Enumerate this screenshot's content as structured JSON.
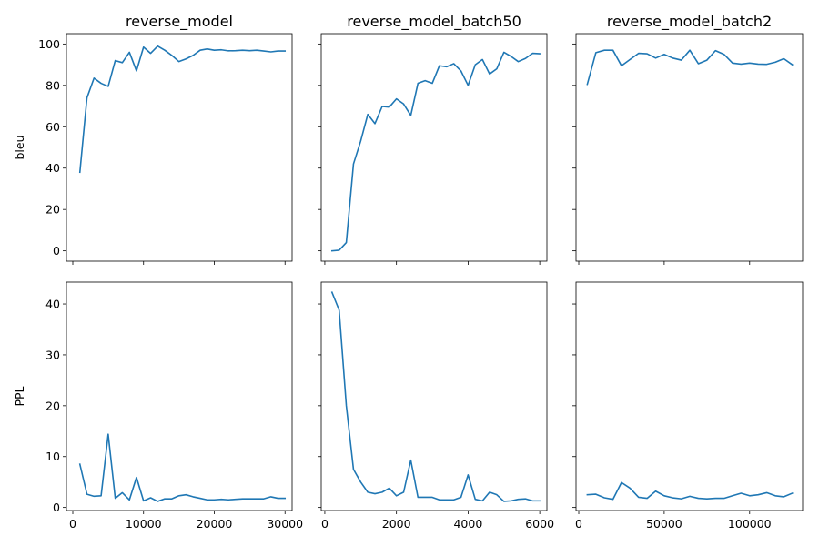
{
  "chart_data": [
    {
      "type": "line",
      "panel": "top-left",
      "title": "reverse_model",
      "ylabel": "bleu",
      "xlabel": "",
      "xlim": [
        -900,
        31000
      ],
      "ylim": [
        -5,
        105
      ],
      "xticks": [
        0,
        10000,
        20000,
        30000
      ],
      "xtick_labels_visible": false,
      "yticks": [
        0,
        20,
        40,
        60,
        80,
        100
      ],
      "ytick_labels_visible": true,
      "x": [
        1000,
        2000,
        3000,
        4000,
        5000,
        6000,
        7000,
        8000,
        9000,
        10000,
        11000,
        12000,
        13000,
        14000,
        15000,
        16000,
        17000,
        18000,
        19000,
        20000,
        21000,
        22000,
        23000,
        24000,
        25000,
        26000,
        27000,
        28000,
        29000,
        30000
      ],
      "y": [
        38,
        74,
        83.5,
        81,
        79.5,
        92,
        91,
        96,
        87,
        98.5,
        95.5,
        99,
        97,
        94.5,
        91.5,
        92.8,
        94.5,
        97,
        97.6,
        97,
        97.2,
        96.7,
        96.8,
        97,
        96.8,
        97,
        96.6,
        96.2,
        96.6,
        96.6
      ]
    },
    {
      "type": "line",
      "panel": "top-middle",
      "title": "reverse_model_batch50",
      "ylabel": "",
      "xlabel": "",
      "xlim": [
        -100,
        6200
      ],
      "ylim": [
        -5,
        105
      ],
      "xticks": [
        0,
        2000,
        4000,
        6000
      ],
      "xtick_labels_visible": false,
      "yticks": [
        0,
        20,
        40,
        60,
        80,
        100
      ],
      "ytick_labels_visible": false,
      "x": [
        200,
        400,
        600,
        800,
        1000,
        1200,
        1400,
        1600,
        1800,
        2000,
        2200,
        2400,
        2600,
        2800,
        3000,
        3200,
        3400,
        3600,
        3800,
        4000,
        4200,
        4400,
        4600,
        4800,
        5000,
        5200,
        5400,
        5600,
        5800,
        6000
      ],
      "y": [
        0,
        0.3,
        4,
        42,
        53,
        66,
        61.5,
        69.8,
        69.5,
        73.5,
        71,
        65.5,
        81,
        82.3,
        81,
        89.5,
        89,
        90.5,
        87,
        80,
        90,
        92.5,
        85.5,
        88,
        96,
        94,
        91.5,
        93,
        95.5,
        95.3
      ]
    },
    {
      "type": "line",
      "panel": "top-right",
      "title": "reverse_model_batch2",
      "ylabel": "",
      "xlabel": "",
      "xlim": [
        -1600,
        131000
      ],
      "ylim": [
        -5,
        105
      ],
      "xticks": [
        0,
        50000,
        100000
      ],
      "xtick_labels_visible": false,
      "yticks": [
        0,
        20,
        40,
        60,
        80,
        100
      ],
      "ytick_labels_visible": false,
      "x": [
        5000,
        10000,
        15000,
        20000,
        25000,
        30000,
        35000,
        40000,
        45000,
        50000,
        55000,
        60000,
        65000,
        70000,
        75000,
        80000,
        85000,
        90000,
        95000,
        100000,
        105000,
        110000,
        115000,
        120000,
        125000
      ],
      "y": [
        80.5,
        95.8,
        97,
        97,
        89.5,
        92.5,
        95.5,
        95.3,
        93.2,
        95,
        93.2,
        92.2,
        97,
        90.5,
        92.2,
        96.8,
        95,
        90.8,
        90.3,
        90.8,
        90.3,
        90.2,
        91.2,
        92.9,
        90
      ]
    },
    {
      "type": "line",
      "panel": "bottom-left",
      "title": "",
      "ylabel": "PPL",
      "xlabel": "",
      "xlim": [
        -900,
        31000
      ],
      "ylim": [
        -0.6,
        44.3
      ],
      "xticks": [
        0,
        10000,
        20000,
        30000
      ],
      "xtick_labels_visible": true,
      "yticks": [
        0,
        10,
        20,
        30,
        40
      ],
      "ytick_labels_visible": true,
      "x": [
        1000,
        2000,
        3000,
        4000,
        5000,
        6000,
        7000,
        8000,
        9000,
        10000,
        11000,
        12000,
        13000,
        14000,
        15000,
        16000,
        17000,
        18000,
        19000,
        20000,
        21000,
        22000,
        23000,
        24000,
        25000,
        26000,
        27000,
        28000,
        29000,
        30000
      ],
      "y": [
        8.5,
        2.6,
        2.2,
        2.3,
        14.4,
        1.8,
        2.9,
        1.5,
        5.9,
        1.3,
        1.9,
        1.2,
        1.7,
        1.7,
        2.3,
        2.5,
        2.1,
        1.8,
        1.5,
        1.5,
        1.6,
        1.5,
        1.6,
        1.7,
        1.7,
        1.7,
        1.7,
        2.1,
        1.8,
        1.8
      ]
    },
    {
      "type": "line",
      "panel": "bottom-middle",
      "title": "",
      "ylabel": "",
      "xlabel": "",
      "xlim": [
        -100,
        6200
      ],
      "ylim": [
        -0.6,
        44.3
      ],
      "xticks": [
        0,
        2000,
        4000,
        6000
      ],
      "xtick_labels_visible": true,
      "yticks": [
        0,
        10,
        20,
        30,
        40
      ],
      "ytick_labels_visible": false,
      "x": [
        200,
        400,
        600,
        800,
        1000,
        1200,
        1400,
        1600,
        1800,
        2000,
        2200,
        2400,
        2600,
        2800,
        3000,
        3200,
        3400,
        3600,
        3800,
        4000,
        4200,
        4400,
        4600,
        4800,
        5000,
        5200,
        5400,
        5600,
        5800,
        6000
      ],
      "y": [
        42.3,
        38.8,
        20,
        7.5,
        5,
        3,
        2.7,
        3,
        3.8,
        2.3,
        3,
        9.3,
        2,
        2,
        2,
        1.5,
        1.5,
        1.5,
        2,
        6.4,
        1.6,
        1.3,
        3,
        2.5,
        1.2,
        1.3,
        1.6,
        1.7,
        1.3,
        1.3
      ]
    },
    {
      "type": "line",
      "panel": "bottom-right",
      "title": "",
      "ylabel": "",
      "xlabel": "",
      "xlim": [
        -1600,
        131000
      ],
      "ylim": [
        -0.6,
        44.3
      ],
      "xticks": [
        0,
        50000,
        100000
      ],
      "xtick_labels_visible": true,
      "yticks": [
        0,
        10,
        20,
        30,
        40
      ],
      "ytick_labels_visible": false,
      "x": [
        5000,
        10000,
        15000,
        20000,
        25000,
        30000,
        35000,
        40000,
        45000,
        50000,
        55000,
        60000,
        65000,
        70000,
        75000,
        80000,
        85000,
        90000,
        95000,
        100000,
        105000,
        110000,
        115000,
        120000,
        125000
      ],
      "y": [
        2.5,
        2.6,
        1.9,
        1.6,
        4.9,
        3.8,
        2,
        1.8,
        3.2,
        2.3,
        1.9,
        1.7,
        2.2,
        1.8,
        1.7,
        1.8,
        1.8,
        2.3,
        2.8,
        2.3,
        2.5,
        2.9,
        2.3,
        2.1,
        2.8
      ]
    }
  ],
  "style": {
    "line_color": "#1f77b4",
    "grid": false,
    "legend": "none",
    "sharey_rows": true,
    "sharex_cols": true
  }
}
